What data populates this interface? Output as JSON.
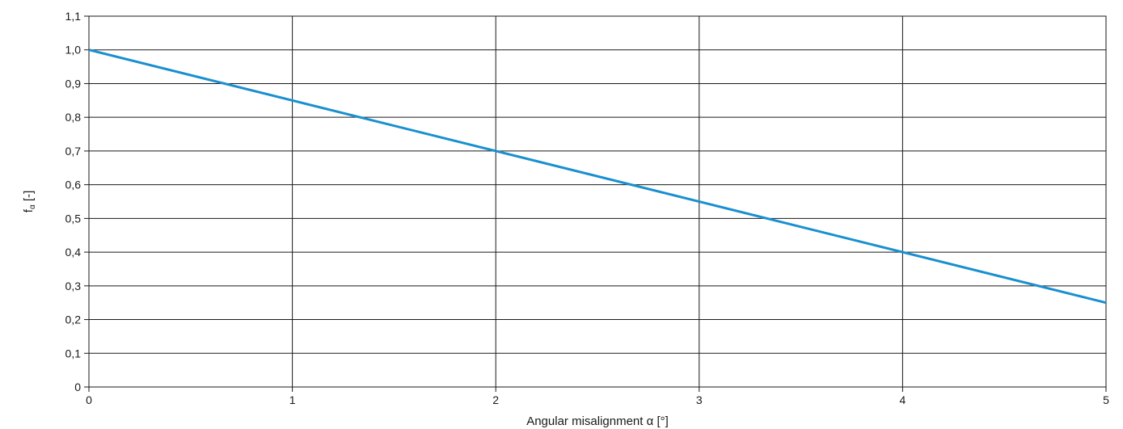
{
  "chart_data": {
    "type": "line",
    "xlabel": "Angular misalignment α [°]",
    "ylabel_main": "f",
    "ylabel_sub": "α",
    "ylabel_unit": " [-]",
    "xlim": [
      0,
      5
    ],
    "ylim": [
      0,
      1.1
    ],
    "x_ticks": [
      0,
      1,
      2,
      3,
      4,
      5
    ],
    "y_ticks": [
      0,
      0.1,
      0.2,
      0.3,
      0.4,
      0.5,
      0.6,
      0.7,
      0.8,
      0.9,
      1.0,
      1.1
    ],
    "x_tick_labels": [
      "0",
      "1",
      "2",
      "3",
      "4",
      "5"
    ],
    "y_tick_labels": [
      "0",
      "0,1",
      "0,2",
      "0,3",
      "0,4",
      "0,5",
      "0,6",
      "0,7",
      "0,8",
      "0,9",
      "1,0",
      "1,1"
    ],
    "grid": true,
    "series": [
      {
        "x": [
          0,
          5
        ],
        "y": [
          1.0,
          0.25
        ],
        "color": "#1a8fd0"
      }
    ]
  }
}
